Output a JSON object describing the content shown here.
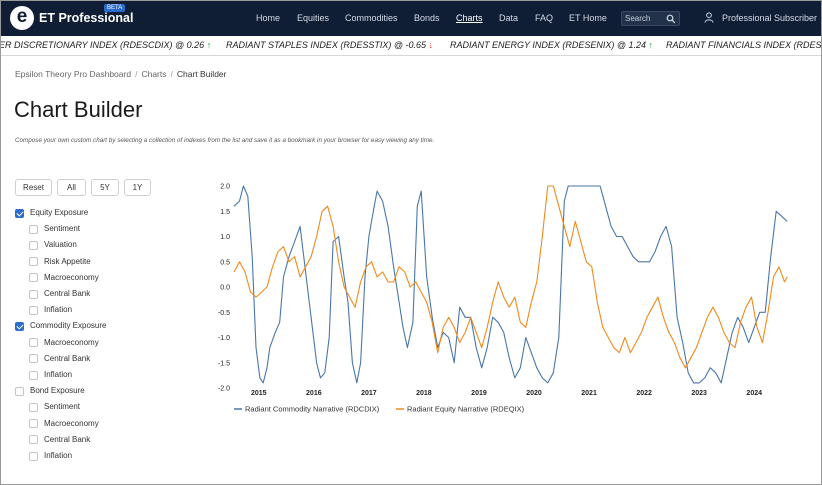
{
  "header": {
    "logo_letter": "e",
    "brand": "ET Professional",
    "beta": "BETA",
    "nav": [
      "Home",
      "Equities",
      "Commodities",
      "Bonds",
      "Charts",
      "Data",
      "FAQ",
      "ET Home"
    ],
    "active_nav": "Charts",
    "search_placeholder": "Search",
    "user": "Professional Subscriber"
  },
  "ticker": [
    {
      "text": "ER DISCRETIONARY INDEX (RDESCDIX) @ 0.26",
      "direction": "up",
      "arrow": "↑"
    },
    {
      "text": "RADIANT STAPLES INDEX (RDESSTIX) @ -0.65",
      "direction": "down",
      "arrow": "↓"
    },
    {
      "text": "RADIANT ENERGY INDEX (RDESENIX) @ 1.24",
      "direction": "up",
      "arrow": "↑"
    },
    {
      "text": "RADIANT FINANCIALS INDEX (RDESFNI",
      "direction": "",
      "arrow": ""
    }
  ],
  "breadcrumb": {
    "items": [
      "Epsilon Theory Pro Dashboard",
      "Charts",
      "Chart Builder"
    ],
    "separator": "/"
  },
  "page": {
    "title": "Chart Builder",
    "description": "Compose your own custom chart by selecting a collection of indexes from the list and save it as a bookmark in your browser for easy viewing any time."
  },
  "buttons": [
    "Reset",
    "All",
    "5Y",
    "1Y"
  ],
  "tree": [
    {
      "label": "Equity Exposure",
      "checked": true,
      "level": 0
    },
    {
      "label": "Sentiment",
      "checked": false,
      "level": 1
    },
    {
      "label": "Valuation",
      "checked": false,
      "level": 1
    },
    {
      "label": "Risk Appetite",
      "checked": false,
      "level": 1
    },
    {
      "label": "Macroeconomy",
      "checked": false,
      "level": 1
    },
    {
      "label": "Central Bank",
      "checked": false,
      "level": 1
    },
    {
      "label": "Inflation",
      "checked": false,
      "level": 1
    },
    {
      "label": "Commodity Exposure",
      "checked": true,
      "level": 0
    },
    {
      "label": "Macroeconomy",
      "checked": false,
      "level": 1
    },
    {
      "label": "Central Bank",
      "checked": false,
      "level": 1
    },
    {
      "label": "Inflation",
      "checked": false,
      "level": 1
    },
    {
      "label": "Bond Exposure",
      "checked": false,
      "level": 0
    },
    {
      "label": "Sentiment",
      "checked": false,
      "level": 1
    },
    {
      "label": "Macroeconomy",
      "checked": false,
      "level": 1
    },
    {
      "label": "Central Bank",
      "checked": false,
      "level": 1
    },
    {
      "label": "Inflation",
      "checked": false,
      "level": 1
    }
  ],
  "chart_data": {
    "type": "line",
    "title": "",
    "xlabel": "",
    "ylabel": "",
    "xlim": [
      2014.55,
      2024.65
    ],
    "ylim": [
      -2.0,
      2.0
    ],
    "y_ticks": [
      2.0,
      1.5,
      1.0,
      0.5,
      0.0,
      -0.5,
      -1.0,
      -1.5,
      -2.0
    ],
    "y_tick_labels": [
      "2.0",
      "1.5",
      "1.0",
      "0.5",
      "0.0",
      "-0.5",
      "-1.0",
      "-1.5",
      "-2.0"
    ],
    "x_ticks": [
      2015,
      2016,
      2017,
      2018,
      2019,
      2020,
      2021,
      2022,
      2023,
      2024
    ],
    "x_tick_labels": [
      "2015",
      "2016",
      "2017",
      "2018",
      "2019",
      "2020",
      "2021",
      "2022",
      "2023",
      "2024"
    ],
    "grid": false,
    "legend": "bottom",
    "series": [
      {
        "name": "Radiant Commodity Narrative (RDCDIX)",
        "color": "#4a76a8",
        "x": [
          2014.55,
          2014.65,
          2014.72,
          2014.8,
          2014.88,
          2014.95,
          2015.02,
          2015.08,
          2015.15,
          2015.2,
          2015.3,
          2015.38,
          2015.45,
          2015.55,
          2015.65,
          2015.75,
          2015.85,
          2015.95,
          2016.05,
          2016.12,
          2016.2,
          2016.28,
          2016.35,
          2016.45,
          2016.55,
          2016.62,
          2016.7,
          2016.78,
          2016.85,
          2016.93,
          2017.0,
          2017.08,
          2017.15,
          2017.25,
          2017.35,
          2017.45,
          2017.55,
          2017.62,
          2017.7,
          2017.8,
          2017.88,
          2017.95,
          2018.05,
          2018.15,
          2018.25,
          2018.35,
          2018.45,
          2018.55,
          2018.65,
          2018.75,
          2018.85,
          2018.95,
          2019.05,
          2019.15,
          2019.25,
          2019.35,
          2019.45,
          2019.55,
          2019.65,
          2019.75,
          2019.85,
          2019.95,
          2020.05,
          2020.15,
          2020.25,
          2020.35,
          2020.45,
          2020.55,
          2020.62,
          2020.7,
          2020.8,
          2020.9,
          2021.0,
          2021.1,
          2021.2,
          2021.3,
          2021.4,
          2021.5,
          2021.6,
          2021.7,
          2021.8,
          2021.9,
          2022.0,
          2022.1,
          2022.2,
          2022.3,
          2022.4,
          2022.5,
          2022.6,
          2022.7,
          2022.8,
          2022.9,
          2023.0,
          2023.1,
          2023.2,
          2023.3,
          2023.4,
          2023.5,
          2023.6,
          2023.7,
          2023.8,
          2023.9,
          2024.0,
          2024.1,
          2024.2,
          2024.3,
          2024.4,
          2024.5,
          2024.6
        ],
        "y": [
          1.6,
          1.7,
          2.0,
          1.8,
          0.6,
          -1.2,
          -1.8,
          -1.9,
          -1.6,
          -1.2,
          -0.9,
          -0.7,
          0.2,
          0.6,
          0.9,
          1.2,
          0.3,
          -0.6,
          -1.5,
          -1.8,
          -1.7,
          -1.0,
          0.9,
          1.0,
          0.2,
          -0.3,
          -1.5,
          -1.9,
          -1.5,
          0.2,
          1.0,
          1.5,
          1.9,
          1.7,
          1.2,
          0.4,
          -0.3,
          -0.8,
          -1.2,
          -0.7,
          1.6,
          1.9,
          0.2,
          -0.6,
          -1.2,
          -0.9,
          -1.0,
          -1.5,
          -0.4,
          -0.6,
          -0.6,
          -1.2,
          -1.6,
          -1.2,
          -0.6,
          -0.7,
          -0.9,
          -1.4,
          -1.8,
          -1.6,
          -1.0,
          -1.3,
          -1.6,
          -1.8,
          -1.9,
          -1.7,
          -1.0,
          1.7,
          2.0,
          2.0,
          2.0,
          2.0,
          2.0,
          2.0,
          2.0,
          1.6,
          1.2,
          1.0,
          1.0,
          0.8,
          0.6,
          0.5,
          0.5,
          0.5,
          0.7,
          1.0,
          1.2,
          0.8,
          -0.6,
          -1.1,
          -1.7,
          -1.9,
          -1.9,
          -1.8,
          -1.6,
          -1.7,
          -1.9,
          -1.4,
          -0.9,
          -0.6,
          -0.8,
          -1.1,
          -0.8,
          -0.5,
          -0.5,
          0.6,
          1.5,
          1.4,
          1.3
        ]
      },
      {
        "name": "Radiant Equity Narrative (RDEQIX)",
        "color": "#ef8a1c",
        "x": [
          2014.55,
          2014.65,
          2014.75,
          2014.85,
          2014.95,
          2015.05,
          2015.15,
          2015.25,
          2015.35,
          2015.45,
          2015.55,
          2015.65,
          2015.75,
          2015.85,
          2015.95,
          2016.05,
          2016.15,
          2016.25,
          2016.35,
          2016.45,
          2016.55,
          2016.65,
          2016.75,
          2016.85,
          2016.95,
          2017.05,
          2017.15,
          2017.25,
          2017.35,
          2017.45,
          2017.55,
          2017.65,
          2017.75,
          2017.85,
          2017.95,
          2018.05,
          2018.15,
          2018.25,
          2018.35,
          2018.45,
          2018.55,
          2018.65,
          2018.75,
          2018.85,
          2018.95,
          2019.05,
          2019.15,
          2019.25,
          2019.35,
          2019.45,
          2019.55,
          2019.65,
          2019.75,
          2019.85,
          2019.95,
          2020.05,
          2020.15,
          2020.25,
          2020.35,
          2020.45,
          2020.55,
          2020.65,
          2020.75,
          2020.85,
          2020.95,
          2021.05,
          2021.15,
          2021.25,
          2021.35,
          2021.45,
          2021.55,
          2021.65,
          2021.75,
          2021.85,
          2021.95,
          2022.05,
          2022.15,
          2022.25,
          2022.35,
          2022.45,
          2022.55,
          2022.65,
          2022.75,
          2022.85,
          2022.95,
          2023.05,
          2023.15,
          2023.25,
          2023.35,
          2023.45,
          2023.55,
          2023.65,
          2023.75,
          2023.85,
          2023.95,
          2024.05,
          2024.15,
          2024.25,
          2024.35,
          2024.45,
          2024.55,
          2024.6
        ],
        "y": [
          0.3,
          0.5,
          0.3,
          -0.1,
          -0.2,
          -0.1,
          0.0,
          0.4,
          0.7,
          0.8,
          0.5,
          0.6,
          0.2,
          0.4,
          0.6,
          1.0,
          1.5,
          1.6,
          1.2,
          0.5,
          0.0,
          -0.2,
          -0.4,
          0.1,
          0.4,
          0.5,
          0.2,
          0.3,
          0.1,
          0.1,
          0.4,
          0.3,
          0.0,
          0.1,
          -0.1,
          -0.3,
          -0.7,
          -1.3,
          -0.8,
          -0.6,
          -0.8,
          -1.1,
          -0.9,
          -0.6,
          -0.9,
          -1.2,
          -0.8,
          -0.3,
          0.1,
          -0.2,
          -0.4,
          -0.2,
          -0.7,
          -0.8,
          -0.3,
          0.1,
          1.0,
          2.0,
          2.0,
          1.6,
          1.2,
          0.8,
          1.3,
          0.9,
          0.5,
          0.4,
          -0.3,
          -0.8,
          -1.0,
          -1.2,
          -1.3,
          -1.0,
          -1.3,
          -1.1,
          -0.9,
          -0.6,
          -0.4,
          -0.2,
          -0.6,
          -0.9,
          -1.1,
          -1.4,
          -1.6,
          -1.4,
          -1.2,
          -0.9,
          -0.6,
          -0.4,
          -0.6,
          -0.9,
          -1.1,
          -1.2,
          -0.7,
          -0.4,
          -0.2,
          -0.8,
          -1.1,
          -0.5,
          0.2,
          0.4,
          0.1,
          0.2
        ]
      }
    ]
  }
}
